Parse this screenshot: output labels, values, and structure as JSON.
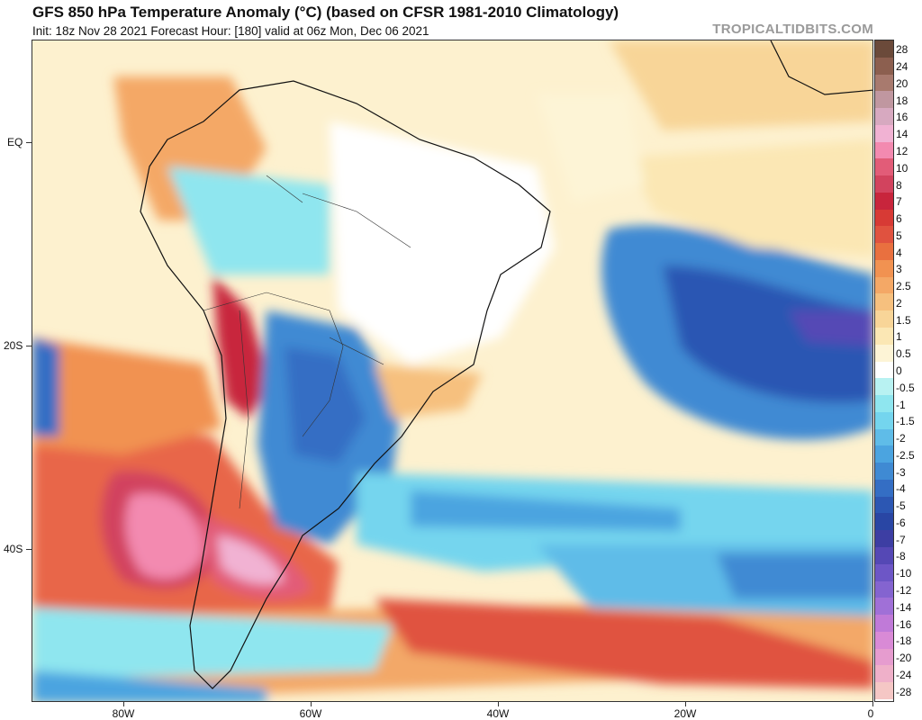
{
  "header": {
    "title": "GFS 850 hPa Temperature Anomaly (°C) (based on CFSR 1981-2010 Climatology)",
    "subtitle": "Init: 18z Nov 28 2021   Forecast Hour: [180]   valid at 06z Mon, Dec 06 2021",
    "brand": "TROPICALTIDBITS.COM"
  },
  "axes": {
    "lat_labels": [
      "EQ",
      "20S",
      "40S"
    ],
    "lon_labels": [
      "80W",
      "60W",
      "40W",
      "20W",
      "0"
    ]
  },
  "colorbar": {
    "labels": [
      "28",
      "24",
      "20",
      "18",
      "16",
      "14",
      "12",
      "10",
      "8",
      "7",
      "6",
      "5",
      "4",
      "3",
      "2.5",
      "2",
      "1.5",
      "1",
      "0.5",
      "0",
      "-0.5",
      "-1",
      "-1.5",
      "-2",
      "-2.5",
      "-3",
      "-4",
      "-5",
      "-6",
      "-7",
      "-8",
      "-10",
      "-12",
      "-14",
      "-16",
      "-18",
      "-20",
      "-24",
      "-28"
    ],
    "colors": [
      "#6b4a3a",
      "#8c5f4f",
      "#a87a6e",
      "#c097a0",
      "#d7a9c0",
      "#f1b2d3",
      "#f38ab0",
      "#e25c78",
      "#d2435e",
      "#c8253c",
      "#d73a35",
      "#e0523f",
      "#e9703f",
      "#f19251",
      "#f4a866",
      "#f6c07e",
      "#f8d598",
      "#fbe7b4",
      "#fdf4d6",
      "#ffffff",
      "#b8f2f2",
      "#8fe6ef",
      "#74d5ee",
      "#5fbce8",
      "#4ba4e0",
      "#3f8ad3",
      "#346ec4",
      "#2c57b3",
      "#2946a4",
      "#3d3ea3",
      "#5548b5",
      "#6d56c6",
      "#8464d0",
      "#a070d7",
      "#c07ad8",
      "#d98ad6",
      "#e69ccf",
      "#efb0c9",
      "#f5c7c5"
    ]
  }
}
